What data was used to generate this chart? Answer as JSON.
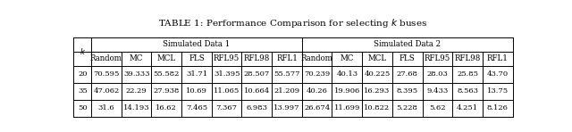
{
  "title": "TABLE 1: Performance Comparison for selecting $k$ buses",
  "sub_headers": [
    "k",
    "Random",
    "MC",
    "MCL",
    "FLS",
    "RFL95",
    "RFL98",
    "RFL1",
    "Random",
    "MC",
    "MCL",
    "FLS",
    "RFL95",
    "RFL98",
    "RFL1"
  ],
  "rows": [
    [
      "20",
      "70.595",
      "39.333",
      "55.582",
      "31.71",
      "31.395",
      "28.507",
      "55.577",
      "70.239",
      "40.13",
      "40.225",
      "27.68",
      "28.03",
      "25.85",
      "43.70"
    ],
    [
      "35",
      "47.062",
      "22.29",
      "27.938",
      "10.69",
      "11.065",
      "10.664",
      "21.209",
      "40.26",
      "19.906",
      "16.293",
      "8.395",
      "9.433",
      "8.563",
      "13.75"
    ],
    [
      "50",
      "31.6",
      "14.193",
      "16.62",
      "7.465",
      "7.367",
      "6.983",
      "13.997",
      "26.674",
      "11.699",
      "10.822",
      "5.228",
      "5.62",
      "4.251",
      "8.126"
    ]
  ],
  "bg_color": "#ffffff",
  "text_color": "#000000",
  "line_color": "#000000",
  "title_fontsize": 7.5,
  "header_fontsize": 6.2,
  "data_fontsize": 6.0
}
